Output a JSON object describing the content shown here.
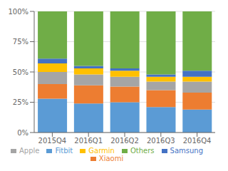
{
  "chart_data": {
    "type": "bar",
    "stacked": true,
    "categories": [
      "2015Q4",
      "2016Q1",
      "2016Q2",
      "2016Q3",
      "2016Q4"
    ],
    "series": [
      {
        "name": "Fitbit",
        "color": "#5B9BD5",
        "values": [
          28,
          24,
          25,
          21,
          19
        ]
      },
      {
        "name": "Xiaomi",
        "color": "#ED7D31",
        "values": [
          12,
          15,
          13,
          14,
          14
        ]
      },
      {
        "name": "Apple",
        "color": "#A5A5A5",
        "values": [
          10,
          9,
          8,
          7,
          9
        ]
      },
      {
        "name": "Garmin",
        "color": "#FFC000",
        "values": [
          7,
          5,
          5,
          4,
          4
        ]
      },
      {
        "name": "Samsung",
        "color": "#4472C4",
        "values": [
          4,
          2,
          2,
          2,
          5
        ]
      },
      {
        "name": "Others",
        "color": "#70AD47",
        "values": [
          39,
          45,
          47,
          52,
          49
        ]
      }
    ],
    "ylim": [
      0,
      100
    ],
    "yticks": [
      {
        "value": 0,
        "label": "0%"
      },
      {
        "value": 25,
        "label": "25%"
      },
      {
        "value": 50,
        "label": "50%"
      },
      {
        "value": 75,
        "label": "75%"
      },
      {
        "value": 100,
        "label": "100%"
      }
    ],
    "grid": true,
    "legend": "bottom"
  }
}
